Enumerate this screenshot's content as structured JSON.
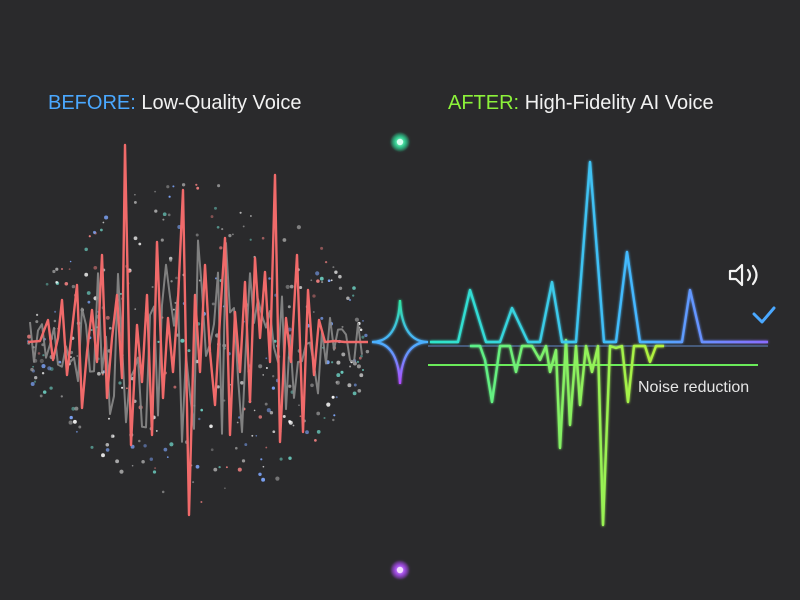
{
  "before": {
    "prefix": "BEFORE:",
    "text": "Low-Quality Voice",
    "prefix_color": "#4aa8ff"
  },
  "after": {
    "prefix": "AFTER:",
    "text": "High-Fidelity AI Voice",
    "prefix_color": "#8cf23a"
  },
  "noise_label": "Noise reduction",
  "icons": [
    "speaker-icon",
    "checkmark-icon"
  ],
  "colors": {
    "background": "#2a2a2c",
    "before_wave": "#f06a6a",
    "noise_wave": "#8a8a8a",
    "after_wave_top": "#35d4f0",
    "after_wave_bottom": "#7cf24a",
    "divider_top": "#2ee6a0",
    "divider_bottom": "#b24cff",
    "check": "#4aa8ff"
  }
}
